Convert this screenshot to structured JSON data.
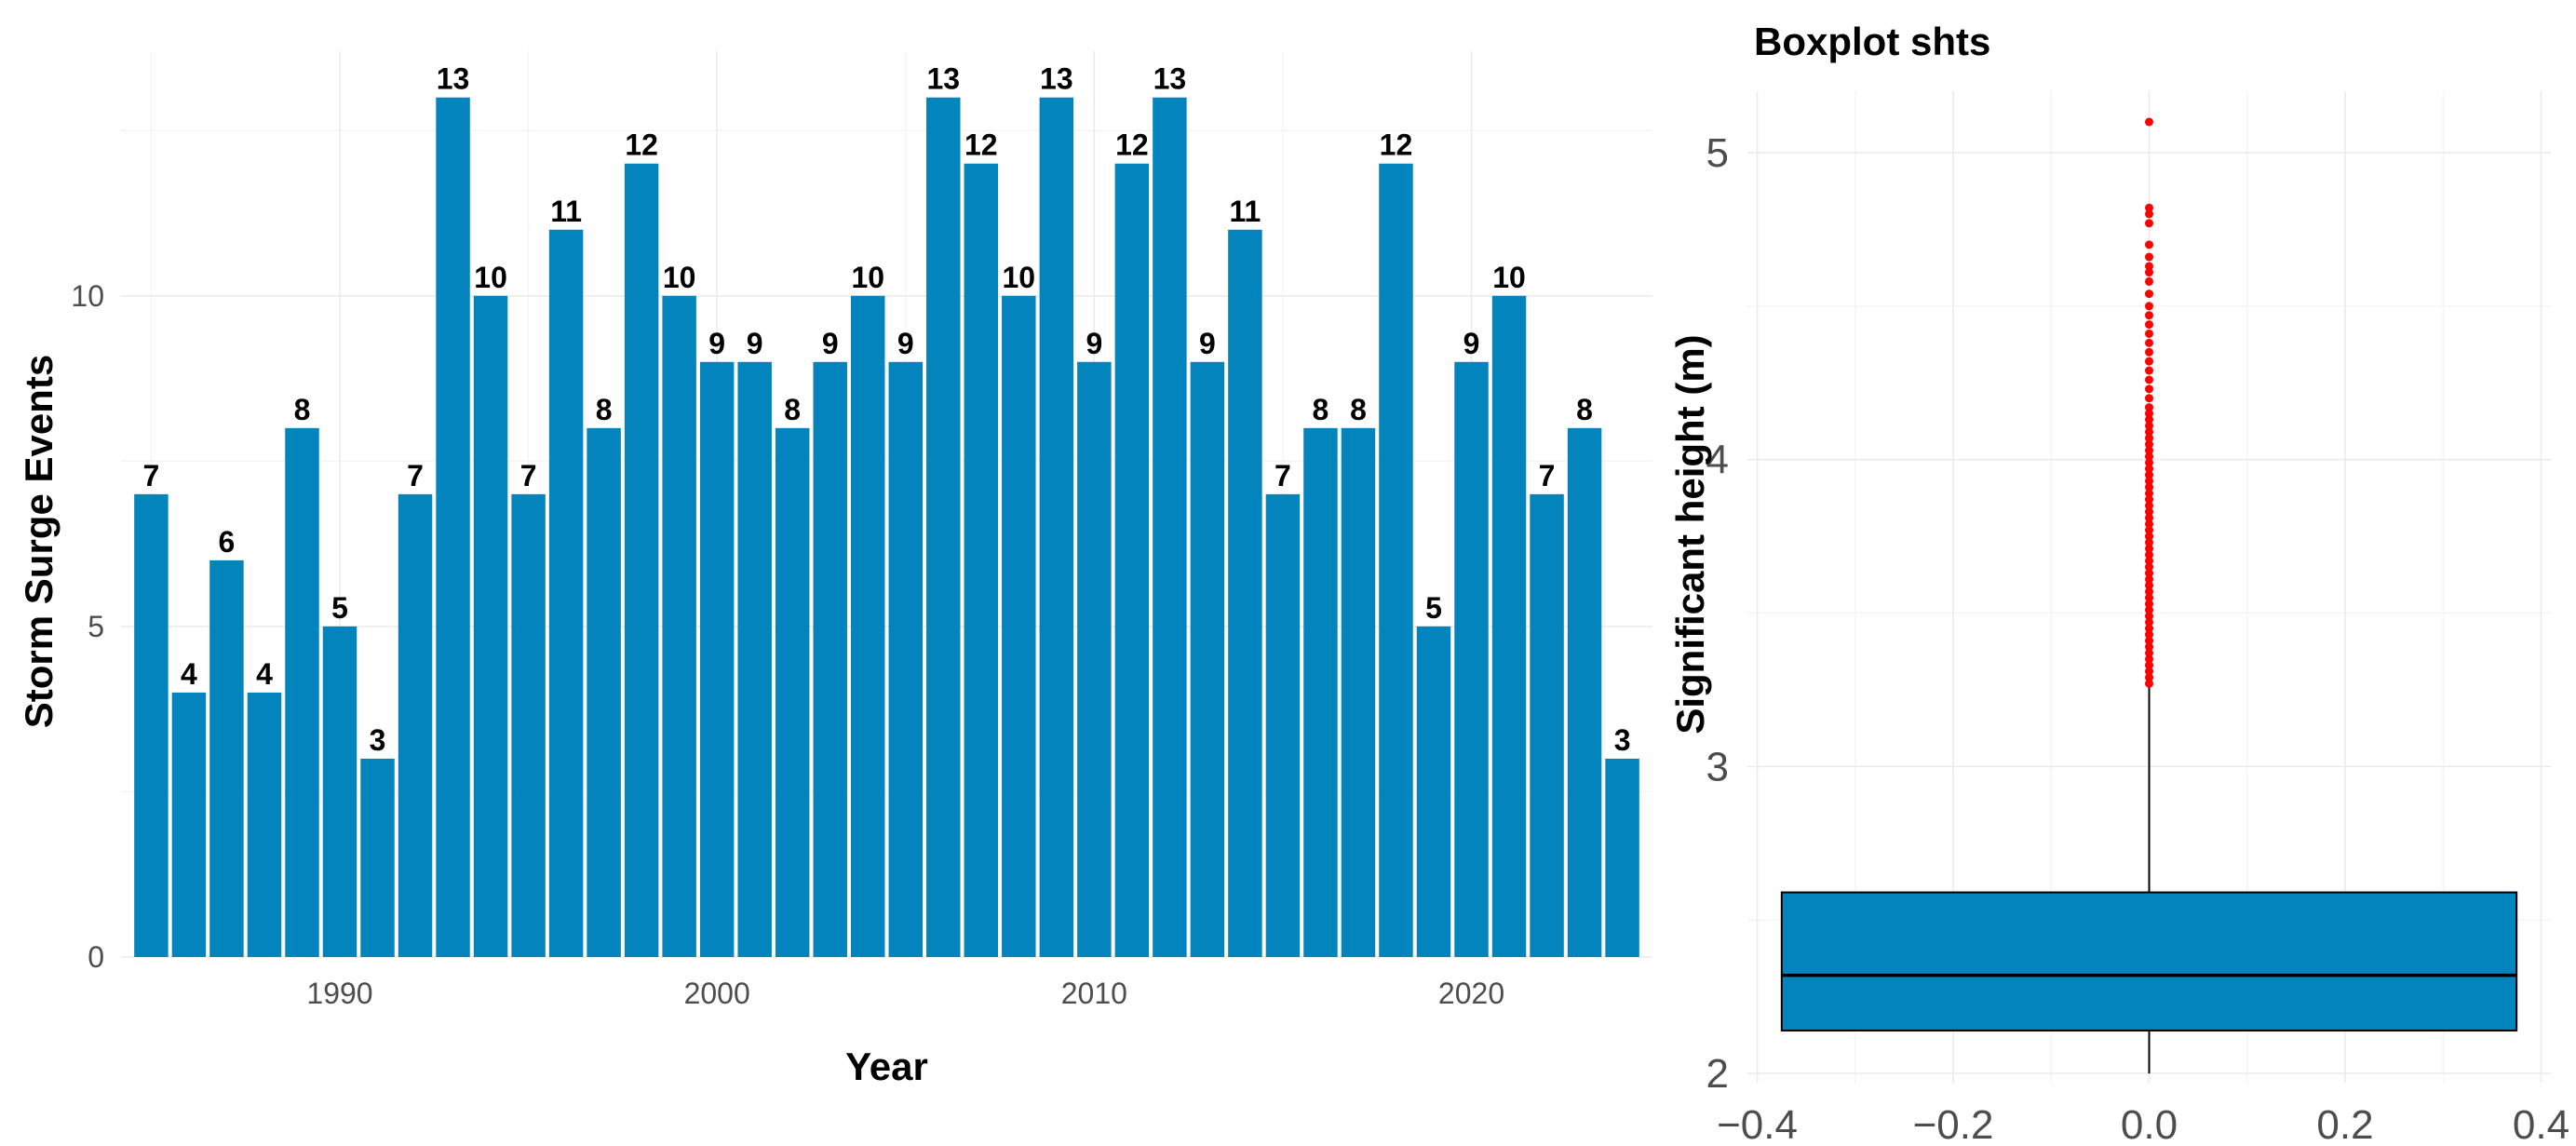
{
  "chart_data": [
    {
      "type": "bar",
      "title": "",
      "xlabel": "Year",
      "ylabel": "Storm Surge Events",
      "color": "#0484bc",
      "x": [
        1985,
        1986,
        1987,
        1988,
        1989,
        1990,
        1991,
        1992,
        1993,
        1994,
        1995,
        1996,
        1997,
        1998,
        1999,
        2000,
        2001,
        2002,
        2003,
        2004,
        2005,
        2006,
        2007,
        2008,
        2009,
        2010,
        2011,
        2012,
        2013,
        2014,
        2015,
        2016,
        2017,
        2018,
        2019,
        2020,
        2021,
        2022,
        2023,
        2024
      ],
      "values": [
        7,
        4,
        6,
        4,
        8,
        5,
        3,
        7,
        13,
        10,
        7,
        11,
        8,
        12,
        10,
        9,
        9,
        8,
        9,
        10,
        9,
        13,
        12,
        10,
        13,
        9,
        12,
        13,
        9,
        11,
        7,
        8,
        8,
        12,
        5,
        9,
        10,
        7,
        8,
        3
      ],
      "xlim": [
        1984.2,
        2024.8
      ],
      "ylim": [
        0,
        13.7
      ],
      "xticks": [
        1990,
        2000,
        2010,
        2020
      ],
      "yticks": [
        0,
        5,
        10
      ]
    },
    {
      "type": "boxplot",
      "title": "Boxplot shts",
      "xlabel": "",
      "ylabel": "Significant height (m)",
      "fill": "#0484bc",
      "outlier_color": "#ff0000",
      "xlim": [
        -0.41,
        0.41
      ],
      "ylim": [
        1.97,
        5.2
      ],
      "xticks": [
        -0.4,
        -0.2,
        0.0,
        0.2,
        0.4
      ],
      "yticks": [
        2,
        3,
        4,
        5
      ],
      "box": {
        "x_left": -0.375,
        "x_right": 0.375,
        "lower_whisker": 2.0,
        "q1": 2.14,
        "median": 2.32,
        "q3": 2.59,
        "upper_whisker": 3.26
      },
      "outliers": [
        3.27,
        3.29,
        3.31,
        3.33,
        3.35,
        3.37,
        3.39,
        3.41,
        3.43,
        3.45,
        3.47,
        3.49,
        3.51,
        3.53,
        3.55,
        3.57,
        3.59,
        3.61,
        3.63,
        3.65,
        3.67,
        3.69,
        3.71,
        3.73,
        3.75,
        3.77,
        3.79,
        3.81,
        3.83,
        3.85,
        3.87,
        3.89,
        3.91,
        3.93,
        3.95,
        3.97,
        3.99,
        4.01,
        4.03,
        4.05,
        4.07,
        4.09,
        4.11,
        4.13,
        4.15,
        4.17,
        4.2,
        4.23,
        4.26,
        4.29,
        4.32,
        4.35,
        4.38,
        4.41,
        4.44,
        4.47,
        4.5,
        4.54,
        4.58,
        4.61,
        4.63,
        4.66,
        4.7,
        4.77,
        4.8,
        4.82,
        5.1
      ]
    }
  ]
}
